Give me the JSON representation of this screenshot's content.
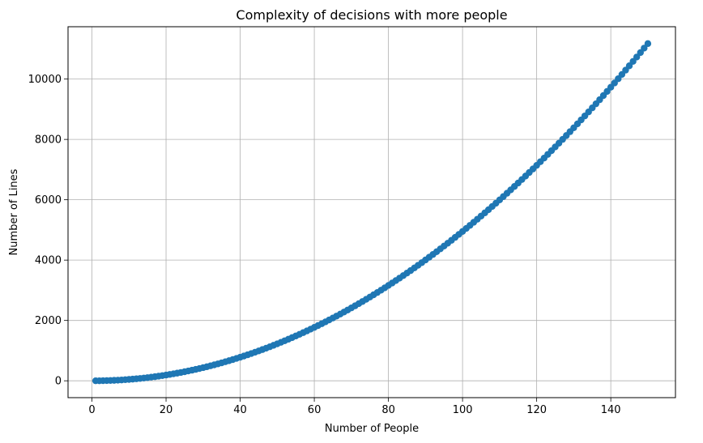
{
  "chart_data": {
    "type": "scatter",
    "title": "Complexity of decisions with more people",
    "xlabel": "Number of People",
    "ylabel": "Number of Lines",
    "xlim": [
      -6.45,
      157.45
    ],
    "ylim": [
      -558.8,
      11734.8
    ],
    "x_ticks": [
      0,
      20,
      40,
      60,
      80,
      100,
      120,
      140
    ],
    "y_ticks": [
      0,
      2000,
      4000,
      6000,
      8000,
      10000
    ],
    "grid": true,
    "legend": null,
    "x_range": [
      1,
      150
    ],
    "formula": "n*(n-1)/2",
    "series": [
      {
        "marker": "circle",
        "color": "#1f77b4",
        "x": [
          1,
          2,
          3,
          4,
          5,
          6,
          7,
          8,
          9,
          10,
          11,
          12,
          13,
          14,
          15,
          16,
          17,
          18,
          19,
          20,
          21,
          22,
          23,
          24,
          25,
          26,
          27,
          28,
          29,
          30,
          31,
          32,
          33,
          34,
          35,
          36,
          37,
          38,
          39,
          40,
          41,
          42,
          43,
          44,
          45,
          46,
          47,
          48,
          49,
          50,
          51,
          52,
          53,
          54,
          55,
          56,
          57,
          58,
          59,
          60,
          61,
          62,
          63,
          64,
          65,
          66,
          67,
          68,
          69,
          70,
          71,
          72,
          73,
          74,
          75,
          76,
          77,
          78,
          79,
          80,
          81,
          82,
          83,
          84,
          85,
          86,
          87,
          88,
          89,
          90,
          91,
          92,
          93,
          94,
          95,
          96,
          97,
          98,
          99,
          100,
          101,
          102,
          103,
          104,
          105,
          106,
          107,
          108,
          109,
          110,
          111,
          112,
          113,
          114,
          115,
          116,
          117,
          118,
          119,
          120,
          121,
          122,
          123,
          124,
          125,
          126,
          127,
          128,
          129,
          130,
          131,
          132,
          133,
          134,
          135,
          136,
          137,
          138,
          139,
          140,
          141,
          142,
          143,
          144,
          145,
          146,
          147,
          148,
          149,
          150
        ],
        "y": [
          0,
          1,
          3,
          6,
          10,
          15,
          21,
          28,
          36,
          45,
          55,
          66,
          78,
          91,
          105,
          120,
          136,
          153,
          171,
          190,
          210,
          231,
          253,
          276,
          300,
          325,
          351,
          378,
          406,
          435,
          465,
          496,
          528,
          561,
          595,
          630,
          666,
          703,
          741,
          780,
          820,
          861,
          903,
          946,
          990,
          1035,
          1081,
          1128,
          1176,
          1225,
          1275,
          1326,
          1378,
          1431,
          1485,
          1540,
          1596,
          1653,
          1711,
          1770,
          1830,
          1891,
          1953,
          2016,
          2080,
          2145,
          2211,
          2278,
          2346,
          2415,
          2485,
          2556,
          2628,
          2701,
          2775,
          2850,
          2926,
          3003,
          3081,
          3160,
          3240,
          3321,
          3403,
          3486,
          3570,
          3655,
          3741,
          3828,
          3916,
          4005,
          4095,
          4186,
          4278,
          4371,
          4465,
          4560,
          4656,
          4753,
          4851,
          4950,
          5050,
          5151,
          5253,
          5356,
          5460,
          5565,
          5671,
          5778,
          5886,
          5995,
          6105,
          6216,
          6328,
          6441,
          6555,
          6670,
          6786,
          6903,
          7021,
          7140,
          7260,
          7381,
          7503,
          7626,
          7750,
          7875,
          8001,
          8128,
          8256,
          8385,
          8515,
          8646,
          8778,
          8911,
          9045,
          9180,
          9316,
          9453,
          9591,
          9730,
          9870,
          10011,
          10153,
          10296,
          10440,
          10585,
          10731,
          10878,
          11026,
          11175
        ]
      }
    ]
  }
}
